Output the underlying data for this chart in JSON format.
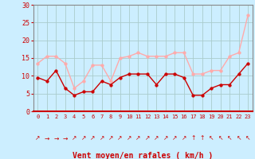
{
  "hours": [
    0,
    1,
    2,
    3,
    4,
    5,
    6,
    7,
    8,
    9,
    10,
    11,
    12,
    13,
    14,
    15,
    16,
    17,
    18,
    19,
    20,
    21,
    22,
    23
  ],
  "wind_avg": [
    9.5,
    8.5,
    11.5,
    6.5,
    4.5,
    5.5,
    5.5,
    8.5,
    7.5,
    9.5,
    10.5,
    10.5,
    10.5,
    7.5,
    10.5,
    10.5,
    9.5,
    4.5,
    4.5,
    6.5,
    7.5,
    7.5,
    10.5,
    13.5
  ],
  "wind_gust": [
    13.5,
    15.5,
    15.5,
    13.5,
    6.5,
    8.5,
    13.0,
    13.0,
    8.5,
    15.0,
    15.5,
    16.5,
    15.5,
    15.5,
    15.5,
    16.5,
    16.5,
    10.5,
    10.5,
    11.5,
    11.5,
    15.5,
    16.5,
    27.0
  ],
  "bg_color": "#cceeff",
  "avg_color": "#cc0000",
  "gust_color": "#ffaaaa",
  "grid_color": "#aacccc",
  "xlabel": "Vent moyen/en rafales ( km/h )",
  "xlabel_color": "#cc0000",
  "tick_color": "#cc0000",
  "spine_color": "#888888",
  "bottom_spine_color": "#cc0000",
  "ylim": [
    0,
    30
  ],
  "yticks": [
    0,
    5,
    10,
    15,
    20,
    25,
    30
  ],
  "arrow_symbols": [
    "↗",
    "→",
    "→",
    "→",
    "↗",
    "↗",
    "↗",
    "↗",
    "↗",
    "↗",
    "↗",
    "↗",
    "↗",
    "↗",
    "↗",
    "↗",
    "↗",
    "↑",
    "↑",
    "↖",
    "↖",
    "↖",
    "↖",
    "↖"
  ]
}
